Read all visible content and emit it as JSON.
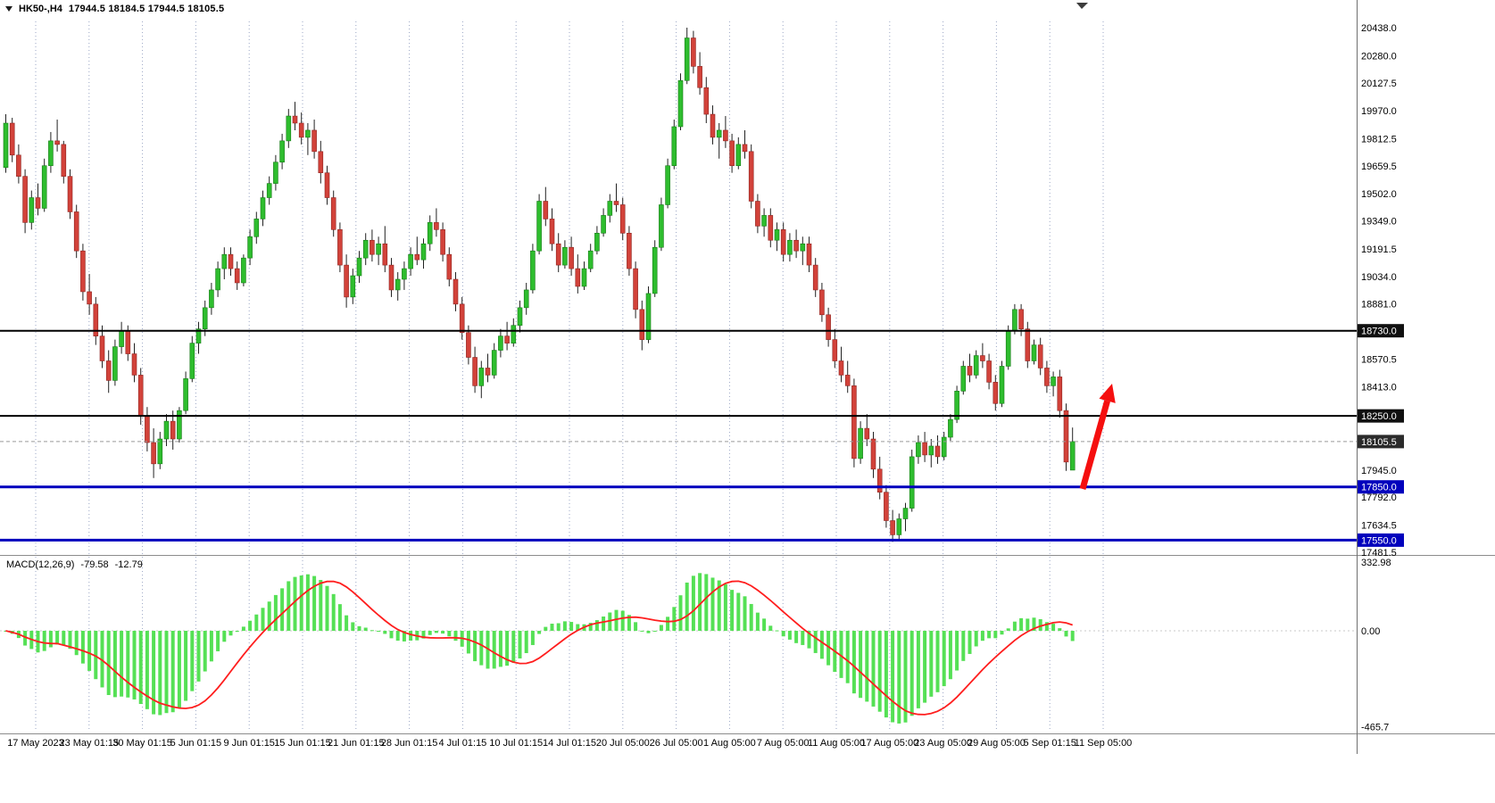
{
  "header": {
    "symbol": "HK50-,H4",
    "ohlc": "17944.5 18184.5 17944.5 18105.5"
  },
  "colors": {
    "bull": "#2ebd2e",
    "bull_edge": "#157a15",
    "bear": "#d2423a",
    "bear_edge": "#8e2420",
    "wick": "#222222",
    "grid": "#9aa6c4",
    "macd_hist": "#55e055",
    "macd_signal": "#ff1e1e",
    "level_black": "#000000",
    "level_blue": "#0202bd",
    "separator": "#8c8c8c",
    "axis_text": "#000000",
    "arrow": "#f50f0f"
  },
  "chart_data": {
    "type": "candlestick",
    "symbol": "HK50-",
    "timeframe": "H4",
    "last_quote": {
      "open": 17944.5,
      "high": 18184.5,
      "low": 17944.5,
      "close": 18105.5
    },
    "price_axis": {
      "min": 17430,
      "max": 20470,
      "ticks": [
        20438.0,
        20280.0,
        20127.5,
        19970.0,
        19812.5,
        19659.5,
        19502.0,
        19349.0,
        19191.5,
        19034.0,
        18881.0,
        18570.5,
        18413.0,
        17945.0,
        17792.0,
        17634.5,
        17481.5
      ]
    },
    "levels": [
      {
        "value": 18730.0,
        "color": "#000000",
        "width": 2,
        "label_bg": "#101010"
      },
      {
        "value": 18250.0,
        "color": "#000000",
        "width": 2,
        "label_bg": "#101010"
      },
      {
        "value": 17850.0,
        "color": "#0202bd",
        "width": 3,
        "label_bg": "#0202bd"
      },
      {
        "value": 17550.0,
        "color": "#0202bd",
        "width": 3,
        "label_bg": "#0202bd"
      }
    ],
    "current_price": {
      "value": 18105.5,
      "label_bg": "#2b2b2b"
    },
    "time_labels": [
      "17 May 2023",
      "23 May 01:15",
      "30 May 01:15",
      "5 Jun 01:15",
      "9 Jun 01:15",
      "15 Jun 01:15",
      "21 Jun 01:15",
      "28 Jun 01:15",
      "4 Jul 01:15",
      "10 Jul 01:15",
      "14 Jul 01:15",
      "20 Jul 05:00",
      "26 Jul 05:00",
      "1 Aug 05:00",
      "7 Aug 05:00",
      "11 Aug 05:00",
      "17 Aug 05:00",
      "23 Aug 05:00",
      "29 Aug 05:00",
      "5 Sep 01:15",
      "11 Sep 05:00"
    ],
    "candles": [
      [
        19650,
        19950,
        19620,
        19900
      ],
      [
        19900,
        19930,
        19680,
        19720
      ],
      [
        19720,
        19780,
        19560,
        19600
      ],
      [
        19600,
        19640,
        19280,
        19340
      ],
      [
        19340,
        19520,
        19300,
        19480
      ],
      [
        19480,
        19560,
        19380,
        19420
      ],
      [
        19420,
        19700,
        19400,
        19660
      ],
      [
        19660,
        19850,
        19620,
        19800
      ],
      [
        19800,
        19920,
        19740,
        19780
      ],
      [
        19780,
        19800,
        19560,
        19600
      ],
      [
        19600,
        19640,
        19360,
        19400
      ],
      [
        19400,
        19440,
        19140,
        19180
      ],
      [
        19180,
        19220,
        18900,
        18950
      ],
      [
        18950,
        19050,
        18820,
        18880
      ],
      [
        18880,
        18920,
        18650,
        18700
      ],
      [
        18700,
        18760,
        18520,
        18560
      ],
      [
        18560,
        18620,
        18380,
        18450
      ],
      [
        18450,
        18680,
        18420,
        18640
      ],
      [
        18640,
        18780,
        18600,
        18730
      ],
      [
        18730,
        18760,
        18560,
        18600
      ],
      [
        18600,
        18660,
        18440,
        18480
      ],
      [
        18480,
        18520,
        18200,
        18250
      ],
      [
        18250,
        18300,
        18050,
        18100
      ],
      [
        18100,
        18180,
        17900,
        17980
      ],
      [
        17980,
        18160,
        17950,
        18120
      ],
      [
        18120,
        18260,
        18080,
        18220
      ],
      [
        18220,
        18280,
        18060,
        18120
      ],
      [
        18120,
        18300,
        18100,
        18280
      ],
      [
        18280,
        18500,
        18260,
        18460
      ],
      [
        18460,
        18700,
        18440,
        18660
      ],
      [
        18660,
        18780,
        18600,
        18740
      ],
      [
        18740,
        18900,
        18700,
        18860
      ],
      [
        18860,
        19000,
        18820,
        18960
      ],
      [
        18960,
        19120,
        18920,
        19080
      ],
      [
        19080,
        19200,
        19020,
        19160
      ],
      [
        19160,
        19200,
        19040,
        19080
      ],
      [
        19080,
        19120,
        18960,
        19000
      ],
      [
        19000,
        19160,
        18980,
        19140
      ],
      [
        19140,
        19300,
        19100,
        19260
      ],
      [
        19260,
        19400,
        19220,
        19360
      ],
      [
        19360,
        19520,
        19320,
        19480
      ],
      [
        19480,
        19600,
        19440,
        19560
      ],
      [
        19560,
        19720,
        19520,
        19680
      ],
      [
        19680,
        19840,
        19640,
        19800
      ],
      [
        19800,
        19980,
        19760,
        19940
      ],
      [
        19940,
        20020,
        19860,
        19900
      ],
      [
        19900,
        19960,
        19780,
        19820
      ],
      [
        19820,
        19900,
        19720,
        19860
      ],
      [
        19860,
        19920,
        19700,
        19740
      ],
      [
        19740,
        19800,
        19560,
        19620
      ],
      [
        19620,
        19660,
        19440,
        19480
      ],
      [
        19480,
        19520,
        19260,
        19300
      ],
      [
        19300,
        19340,
        19060,
        19100
      ],
      [
        19100,
        19160,
        18860,
        18920
      ],
      [
        18920,
        19080,
        18880,
        19040
      ],
      [
        19040,
        19180,
        19000,
        19140
      ],
      [
        19140,
        19280,
        19100,
        19240
      ],
      [
        19240,
        19300,
        19120,
        19160
      ],
      [
        19160,
        19260,
        19100,
        19220
      ],
      [
        19220,
        19320,
        19060,
        19100
      ],
      [
        19100,
        19140,
        18920,
        18960
      ],
      [
        18960,
        19060,
        18900,
        19020
      ],
      [
        19020,
        19120,
        18960,
        19080
      ],
      [
        19080,
        19200,
        19040,
        19160
      ],
      [
        19160,
        19260,
        19100,
        19130
      ],
      [
        19130,
        19250,
        19080,
        19220
      ],
      [
        19220,
        19380,
        19180,
        19340
      ],
      [
        19340,
        19420,
        19260,
        19300
      ],
      [
        19300,
        19340,
        19120,
        19160
      ],
      [
        19160,
        19200,
        18980,
        19020
      ],
      [
        19020,
        19060,
        18840,
        18880
      ],
      [
        18880,
        18920,
        18680,
        18720
      ],
      [
        18720,
        18760,
        18540,
        18580
      ],
      [
        18580,
        18640,
        18380,
        18420
      ],
      [
        18420,
        18560,
        18350,
        18520
      ],
      [
        18520,
        18600,
        18440,
        18480
      ],
      [
        18480,
        18660,
        18460,
        18620
      ],
      [
        18620,
        18740,
        18580,
        18700
      ],
      [
        18700,
        18780,
        18620,
        18660
      ],
      [
        18660,
        18800,
        18640,
        18760
      ],
      [
        18760,
        18900,
        18720,
        18860
      ],
      [
        18860,
        19000,
        18820,
        18960
      ],
      [
        18960,
        19220,
        18940,
        19180
      ],
      [
        19180,
        19500,
        19160,
        19460
      ],
      [
        19460,
        19540,
        19320,
        19360
      ],
      [
        19360,
        19420,
        19180,
        19220
      ],
      [
        19220,
        19280,
        19060,
        19100
      ],
      [
        19100,
        19240,
        19080,
        19200
      ],
      [
        19200,
        19260,
        19040,
        19080
      ],
      [
        19080,
        19160,
        18940,
        18980
      ],
      [
        18980,
        19120,
        18960,
        19080
      ],
      [
        19080,
        19220,
        19060,
        19180
      ],
      [
        19180,
        19320,
        19160,
        19280
      ],
      [
        19280,
        19420,
        19260,
        19380
      ],
      [
        19380,
        19500,
        19340,
        19460
      ],
      [
        19460,
        19560,
        19400,
        19440
      ],
      [
        19440,
        19480,
        19240,
        19280
      ],
      [
        19280,
        19320,
        19040,
        19080
      ],
      [
        19080,
        19120,
        18800,
        18850
      ],
      [
        18850,
        18900,
        18620,
        18680
      ],
      [
        18680,
        18980,
        18660,
        18940
      ],
      [
        18940,
        19240,
        18920,
        19200
      ],
      [
        19200,
        19480,
        19180,
        19440
      ],
      [
        19440,
        19700,
        19420,
        19660
      ],
      [
        19660,
        19920,
        19640,
        19880
      ],
      [
        19880,
        20180,
        19860,
        20140
      ],
      [
        20140,
        20438,
        20120,
        20380
      ],
      [
        20380,
        20420,
        20180,
        20220
      ],
      [
        20220,
        20300,
        20060,
        20100
      ],
      [
        20100,
        20160,
        19900,
        19950
      ],
      [
        19950,
        20000,
        19780,
        19820
      ],
      [
        19820,
        19900,
        19700,
        19860
      ],
      [
        19860,
        19940,
        19760,
        19800
      ],
      [
        19800,
        19840,
        19620,
        19660
      ],
      [
        19660,
        19820,
        19640,
        19780
      ],
      [
        19780,
        19860,
        19700,
        19740
      ],
      [
        19740,
        19780,
        19420,
        19460
      ],
      [
        19460,
        19500,
        19280,
        19320
      ],
      [
        19320,
        19420,
        19260,
        19380
      ],
      [
        19380,
        19420,
        19200,
        19240
      ],
      [
        19240,
        19340,
        19180,
        19300
      ],
      [
        19300,
        19340,
        19120,
        19160
      ],
      [
        19160,
        19280,
        19120,
        19240
      ],
      [
        19240,
        19300,
        19140,
        19180
      ],
      [
        19180,
        19260,
        19100,
        19220
      ],
      [
        19220,
        19260,
        19060,
        19100
      ],
      [
        19100,
        19140,
        18920,
        18960
      ],
      [
        18960,
        19000,
        18780,
        18820
      ],
      [
        18820,
        18860,
        18640,
        18680
      ],
      [
        18680,
        18740,
        18520,
        18560
      ],
      [
        18560,
        18640,
        18440,
        18480
      ],
      [
        18480,
        18560,
        18380,
        18420
      ],
      [
        18420,
        18460,
        17960,
        18010
      ],
      [
        18010,
        18220,
        17980,
        18180
      ],
      [
        18180,
        18260,
        18080,
        18120
      ],
      [
        18120,
        18160,
        17900,
        17950
      ],
      [
        17950,
        18020,
        17780,
        17820
      ],
      [
        17820,
        17860,
        17620,
        17660
      ],
      [
        17660,
        17720,
        17540,
        17580
      ],
      [
        17580,
        17700,
        17550,
        17670
      ],
      [
        17670,
        17760,
        17600,
        17730
      ],
      [
        17730,
        18060,
        17710,
        18020
      ],
      [
        18020,
        18140,
        17980,
        18100
      ],
      [
        18100,
        18160,
        17990,
        18030
      ],
      [
        18030,
        18120,
        17960,
        18080
      ],
      [
        18080,
        18140,
        17980,
        18020
      ],
      [
        18020,
        18160,
        18000,
        18130
      ],
      [
        18130,
        18260,
        18110,
        18230
      ],
      [
        18230,
        18420,
        18210,
        18390
      ],
      [
        18390,
        18560,
        18370,
        18530
      ],
      [
        18530,
        18600,
        18440,
        18480
      ],
      [
        18480,
        18620,
        18460,
        18590
      ],
      [
        18590,
        18660,
        18520,
        18560
      ],
      [
        18560,
        18600,
        18400,
        18440
      ],
      [
        18440,
        18480,
        18280,
        18320
      ],
      [
        18320,
        18560,
        18300,
        18530
      ],
      [
        18530,
        18760,
        18510,
        18730
      ],
      [
        18730,
        18880,
        18710,
        18850
      ],
      [
        18850,
        18880,
        18700,
        18740
      ],
      [
        18740,
        18780,
        18520,
        18560
      ],
      [
        18560,
        18680,
        18540,
        18650
      ],
      [
        18650,
        18690,
        18480,
        18520
      ],
      [
        18520,
        18560,
        18380,
        18420
      ],
      [
        18420,
        18500,
        18360,
        18470
      ],
      [
        18470,
        18510,
        18240,
        18280
      ],
      [
        18280,
        18320,
        17940,
        17990
      ],
      [
        17944.5,
        18184.5,
        17944.5,
        18105.5
      ]
    ],
    "macd": {
      "name": "MACD(12,26,9)",
      "fast": 12,
      "slow": 26,
      "signal": 9,
      "value_main": "-79.58",
      "value_signal": "-12.79",
      "axis_ticks": [
        {
          "label": "332.98",
          "value": 332.98
        },
        {
          "label": "0.00",
          "value": 0
        },
        {
          "label": "-465.7",
          "value": -465.7
        }
      ]
    },
    "annotation_arrow": {
      "from": [
        1213,
        548
      ],
      "to": [
        1246,
        430
      ],
      "color": "#f50f0f"
    }
  }
}
